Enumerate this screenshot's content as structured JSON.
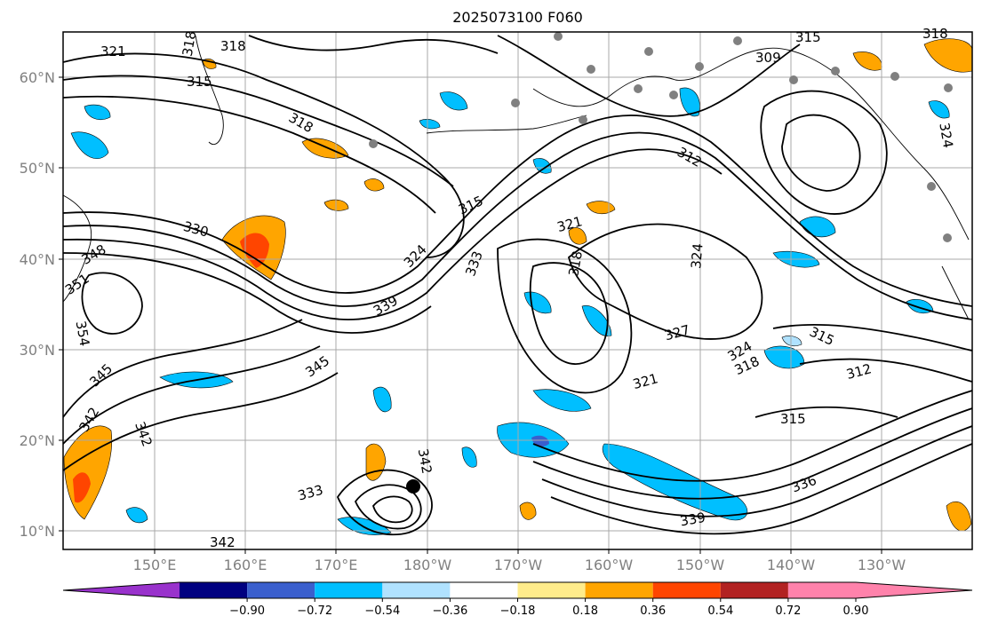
{
  "title": "2025073100 F060",
  "latitude_labels": [
    "60°N",
    "50°N",
    "40°N",
    "30°N",
    "20°N",
    "10°N"
  ],
  "longitude_labels": [
    "150°E",
    "160°E",
    "170°E",
    "180°W",
    "170°W",
    "160°W",
    "150°W",
    "140°W",
    "130°W"
  ],
  "contour_labels": [
    "321",
    "318",
    "318",
    "315",
    "318",
    "330",
    "348",
    "351",
    "354",
    "345",
    "342",
    "342",
    "339",
    "345",
    "315",
    "324",
    "333",
    "321",
    "318",
    "324",
    "327",
    "321",
    "324",
    "318",
    "315",
    "312",
    "315",
    "336",
    "339",
    "342",
    "333",
    "342",
    "309",
    "312",
    "315",
    "318",
    "324"
  ],
  "colorbar": {
    "ticks": [
      "−0.90",
      "−0.72",
      "−0.54",
      "−0.36",
      "−0.18",
      "0.18",
      "0.36",
      "0.54",
      "0.72",
      "0.90"
    ],
    "colors": [
      "#9932cc",
      "#000080",
      "#3a5fcd",
      "#00bfff",
      "#b0e2ff",
      "#ffffff",
      "#ffec8b",
      "#ffa500",
      "#ff4500",
      "#b22222",
      "#ff82ab",
      "#ff82ab"
    ]
  },
  "colors": {
    "positive_light": "#ffec8b",
    "positive_orange": "#ffa500",
    "positive_red": "#ff4500",
    "negative_light": "#b0e2ff",
    "negative_blue": "#00bfff",
    "negative_dark": "#3a5fcd",
    "contour": "#000000",
    "coast": "#000000",
    "grid": "#a9a9a9",
    "station_dot": "#808080"
  }
}
